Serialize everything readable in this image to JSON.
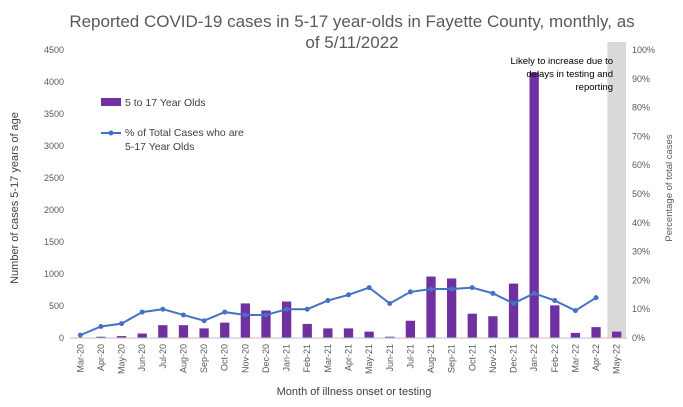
{
  "chart_data": {
    "type": "bar",
    "title_line1": "Reported COVID-19 cases in 5-17 year-olds in Fayette County, monthly, as",
    "title_line2": "of 5/11/2022",
    "xlabel": "Month of illness onset or testing",
    "ylabel": "Number of cases 5-17 years of age",
    "y2label": "Percentage of total cases",
    "ylim": [
      0,
      4500
    ],
    "y2lim": [
      0,
      100
    ],
    "yticks": [
      "0",
      "500",
      "1000",
      "1500",
      "2000",
      "2500",
      "3000",
      "3500",
      "4000",
      "4500"
    ],
    "y2ticks": [
      "0%",
      "10%",
      "20%",
      "30%",
      "40%",
      "50%",
      "60%",
      "70%",
      "80%",
      "90%",
      "100%"
    ],
    "categories": [
      "Mar-20",
      "Apr-20",
      "May-20",
      "Jun-20",
      "Jul-20",
      "Aug-20",
      "Sep-20",
      "Oct-20",
      "Nov-20",
      "Dec-20",
      "Jan-21",
      "Feb-21",
      "Mar-21",
      "Apr-21",
      "May-21",
      "Jun-21",
      "Jul-21",
      "Aug-21",
      "Sep-21",
      "Oct-21",
      "Nov-21",
      "Dec-21",
      "Jan-22",
      "Feb-22",
      "Mar-22",
      "Apr-22",
      "May-22"
    ],
    "series": [
      {
        "name": "5 to 17 Year Olds",
        "kind": "bar",
        "axis": "left",
        "color": "#7030A0",
        "values": [
          5,
          20,
          30,
          70,
          200,
          200,
          150,
          240,
          540,
          430,
          570,
          220,
          150,
          150,
          100,
          20,
          270,
          960,
          930,
          380,
          340,
          850,
          4150,
          510,
          80,
          170,
          100
        ]
      },
      {
        "name": "% of Total Cases who are\n5-17 Year Olds",
        "kind": "line",
        "axis": "right",
        "color": "#4472C4",
        "values": [
          1,
          4,
          5,
          9,
          10,
          8,
          6,
          9,
          8,
          8,
          10,
          10,
          13,
          15,
          17.5,
          12,
          16,
          17,
          17,
          17.5,
          15.5,
          12,
          15.5,
          13,
          9.5,
          14,
          null
        ]
      }
    ],
    "annotation": [
      "Likely to increase due to",
      "delays in testing and",
      "reporting"
    ],
    "shaded_category": "May-22",
    "shade_color": "#D9D9D9",
    "gridlines": false,
    "legend_position": "upper-left inside plot"
  }
}
